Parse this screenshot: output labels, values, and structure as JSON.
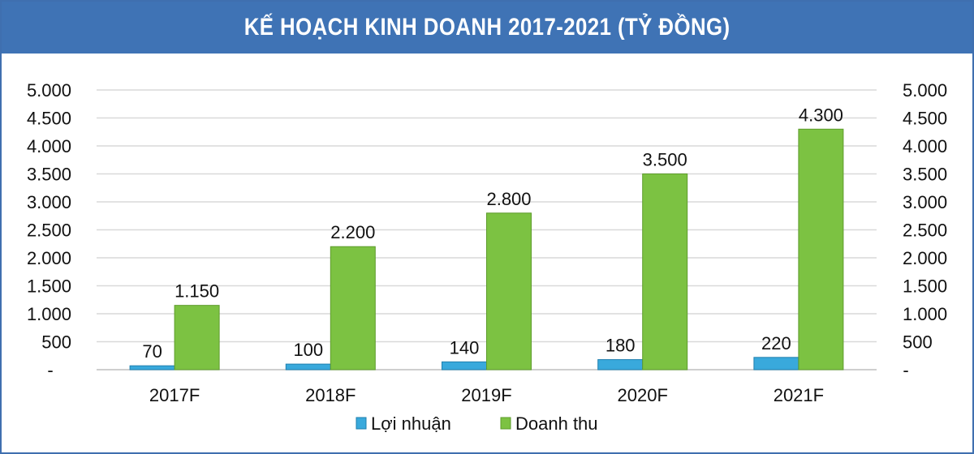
{
  "header": {
    "title": "KẾ HOẠCH KINH DOANH 2017-2021 (TỶ ĐỒNG)"
  },
  "colors": {
    "header_bg": "#3f73b5",
    "profit": "#39a9dc",
    "revenue": "#7cc242",
    "grid": "#d9d9d9"
  },
  "chart_data": {
    "type": "bar",
    "title": "KẾ HOẠCH KINH DOANH 2017-2021 (TỶ ĐỒNG)",
    "categories": [
      "2017F",
      "2018F",
      "2019F",
      "2020F",
      "2021F"
    ],
    "series": [
      {
        "name": "Lợi nhuận",
        "values": [
          70,
          100,
          140,
          180,
          220
        ],
        "labels": [
          "70",
          "100",
          "140",
          "180",
          "220"
        ],
        "color": "#39a9dc"
      },
      {
        "name": "Doanh thu",
        "values": [
          1150,
          2200,
          2800,
          3500,
          4300
        ],
        "labels": [
          "1.150",
          "2.200",
          "2.800",
          "3.500",
          "4.300"
        ],
        "color": "#7cc242"
      }
    ],
    "ylim": [
      0,
      5000
    ],
    "yticks": [
      0,
      500,
      1000,
      1500,
      2000,
      2500,
      3000,
      3500,
      4000,
      4500,
      5000
    ],
    "ytick_labels": [
      "-",
      "500",
      "1.000",
      "1.500",
      "2.000",
      "2.500",
      "3.000",
      "3.500",
      "4.000",
      "4.500",
      "5.000"
    ],
    "secondary_y_axis": true,
    "grid": true,
    "legend_position": "bottom"
  }
}
